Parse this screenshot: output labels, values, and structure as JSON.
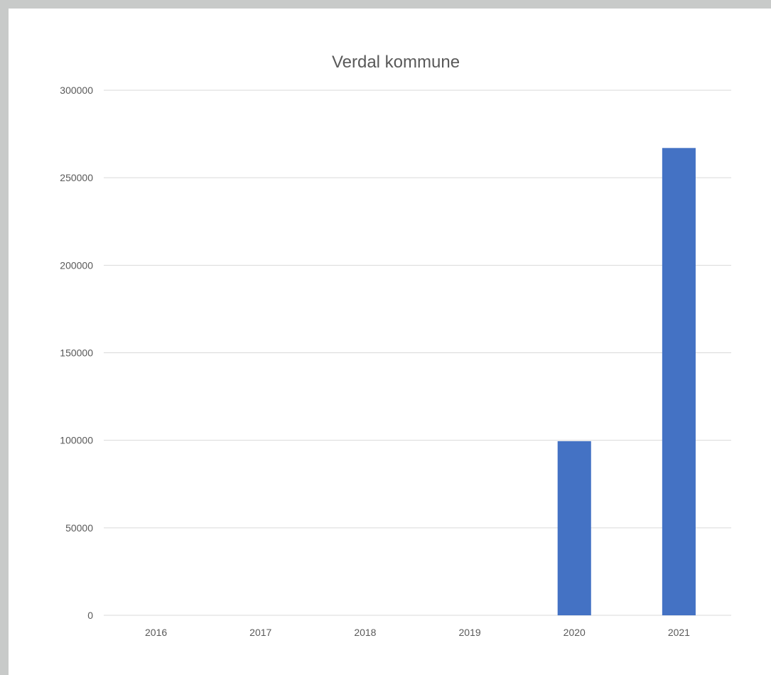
{
  "colors": {
    "bar": "#4472c4",
    "gridline": "#d9d9d9",
    "text": "#595959",
    "panel": "#ffffff",
    "background": "#c8cac9"
  },
  "chart_data": {
    "type": "bar",
    "title": "Verdal kommune",
    "xlabel": "",
    "ylabel": "",
    "categories": [
      "2016",
      "2017",
      "2018",
      "2019",
      "2020",
      "2021"
    ],
    "values": [
      0,
      0,
      0,
      0,
      99500,
      267000
    ],
    "ylim": [
      0,
      300000
    ],
    "yticks": [
      0,
      50000,
      100000,
      150000,
      200000,
      250000,
      300000
    ],
    "ytick_labels": [
      "0",
      "50000",
      "100000",
      "150000",
      "200000",
      "250000",
      "300000"
    ],
    "grid": true,
    "legend": "none"
  }
}
